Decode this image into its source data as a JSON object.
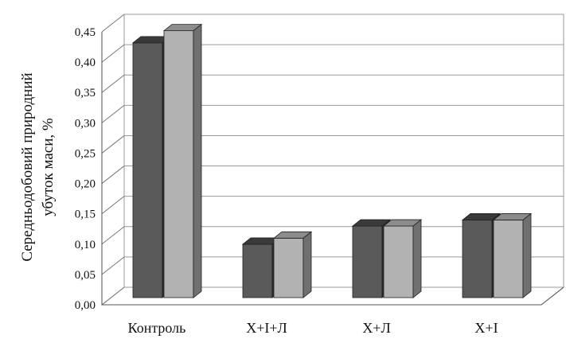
{
  "chart_data": {
    "type": "bar",
    "title": "",
    "ylabel_lines": [
      "Середньодобовий  природний",
      "убуток    маси, %"
    ],
    "xlabel": "",
    "categories": [
      "Контроль",
      "Х+І+Л",
      "Х+Л",
      "Х+І"
    ],
    "series": [
      {
        "values": [
          0.42,
          0.088,
          0.118,
          0.128
        ]
      },
      {
        "values": [
          0.44,
          0.098,
          0.118,
          0.128
        ]
      }
    ],
    "ylim": [
      0,
      0.45
    ],
    "yticks": [
      "0,00",
      "0,05",
      "0,10",
      "0,15",
      "0,20",
      "0,25",
      "0,30",
      "0,35",
      "0,40",
      "0,45"
    ],
    "grid": true,
    "style": "3d-clustered-column",
    "colors": {
      "series1_front": "#5a5a5a",
      "series1_top": "#3a3a3a",
      "series1_side": "#2c2c2c",
      "series2_front": "#b2b2b2",
      "series2_top": "#8c8c8c",
      "series2_side": "#707070",
      "grid": "#9a9a9a",
      "wall": "#ffffff"
    }
  }
}
